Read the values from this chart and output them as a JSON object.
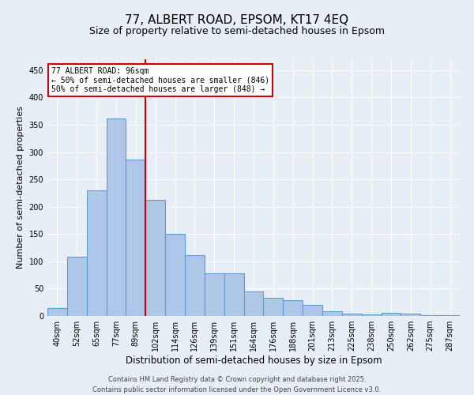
{
  "title": "77, ALBERT ROAD, EPSOM, KT17 4EQ",
  "subtitle": "Size of property relative to semi-detached houses in Epsom",
  "xlabel": "Distribution of semi-detached houses by size in Epsom",
  "ylabel": "Number of semi-detached properties",
  "categories": [
    "40sqm",
    "52sqm",
    "65sqm",
    "77sqm",
    "89sqm",
    "102sqm",
    "114sqm",
    "126sqm",
    "139sqm",
    "151sqm",
    "164sqm",
    "176sqm",
    "188sqm",
    "201sqm",
    "213sqm",
    "225sqm",
    "238sqm",
    "250sqm",
    "262sqm",
    "275sqm",
    "287sqm"
  ],
  "values": [
    15,
    108,
    230,
    362,
    287,
    213,
    150,
    111,
    78,
    78,
    45,
    33,
    29,
    20,
    9,
    5,
    3,
    6,
    5,
    2,
    1
  ],
  "bar_color": "#aec6e8",
  "bar_edge_color": "#5a9fd4",
  "bar_linewidth": 0.8,
  "vline_x": 4.5,
  "vline_color": "#cc0000",
  "vline_linewidth": 1.5,
  "annotation_title": "77 ALBERT ROAD: 96sqm",
  "annotation_line1": "← 50% of semi-detached houses are smaller (846)",
  "annotation_line2": "50% of semi-detached houses are larger (848) →",
  "annotation_box_color": "#ffffff",
  "annotation_box_edge": "#cc0000",
  "ylim": [
    0,
    470
  ],
  "yticks": [
    0,
    50,
    100,
    150,
    200,
    250,
    300,
    350,
    400,
    450
  ],
  "bg_color": "#e8eef5",
  "grid_color": "#ffffff",
  "footer_line1": "Contains HM Land Registry data © Crown copyright and database right 2025.",
  "footer_line2": "Contains public sector information licensed under the Open Government Licence v3.0.",
  "title_fontsize": 11,
  "subtitle_fontsize": 9,
  "xlabel_fontsize": 8.5,
  "ylabel_fontsize": 8,
  "tick_fontsize": 7,
  "annotation_fontsize": 7,
  "footer_fontsize": 6
}
